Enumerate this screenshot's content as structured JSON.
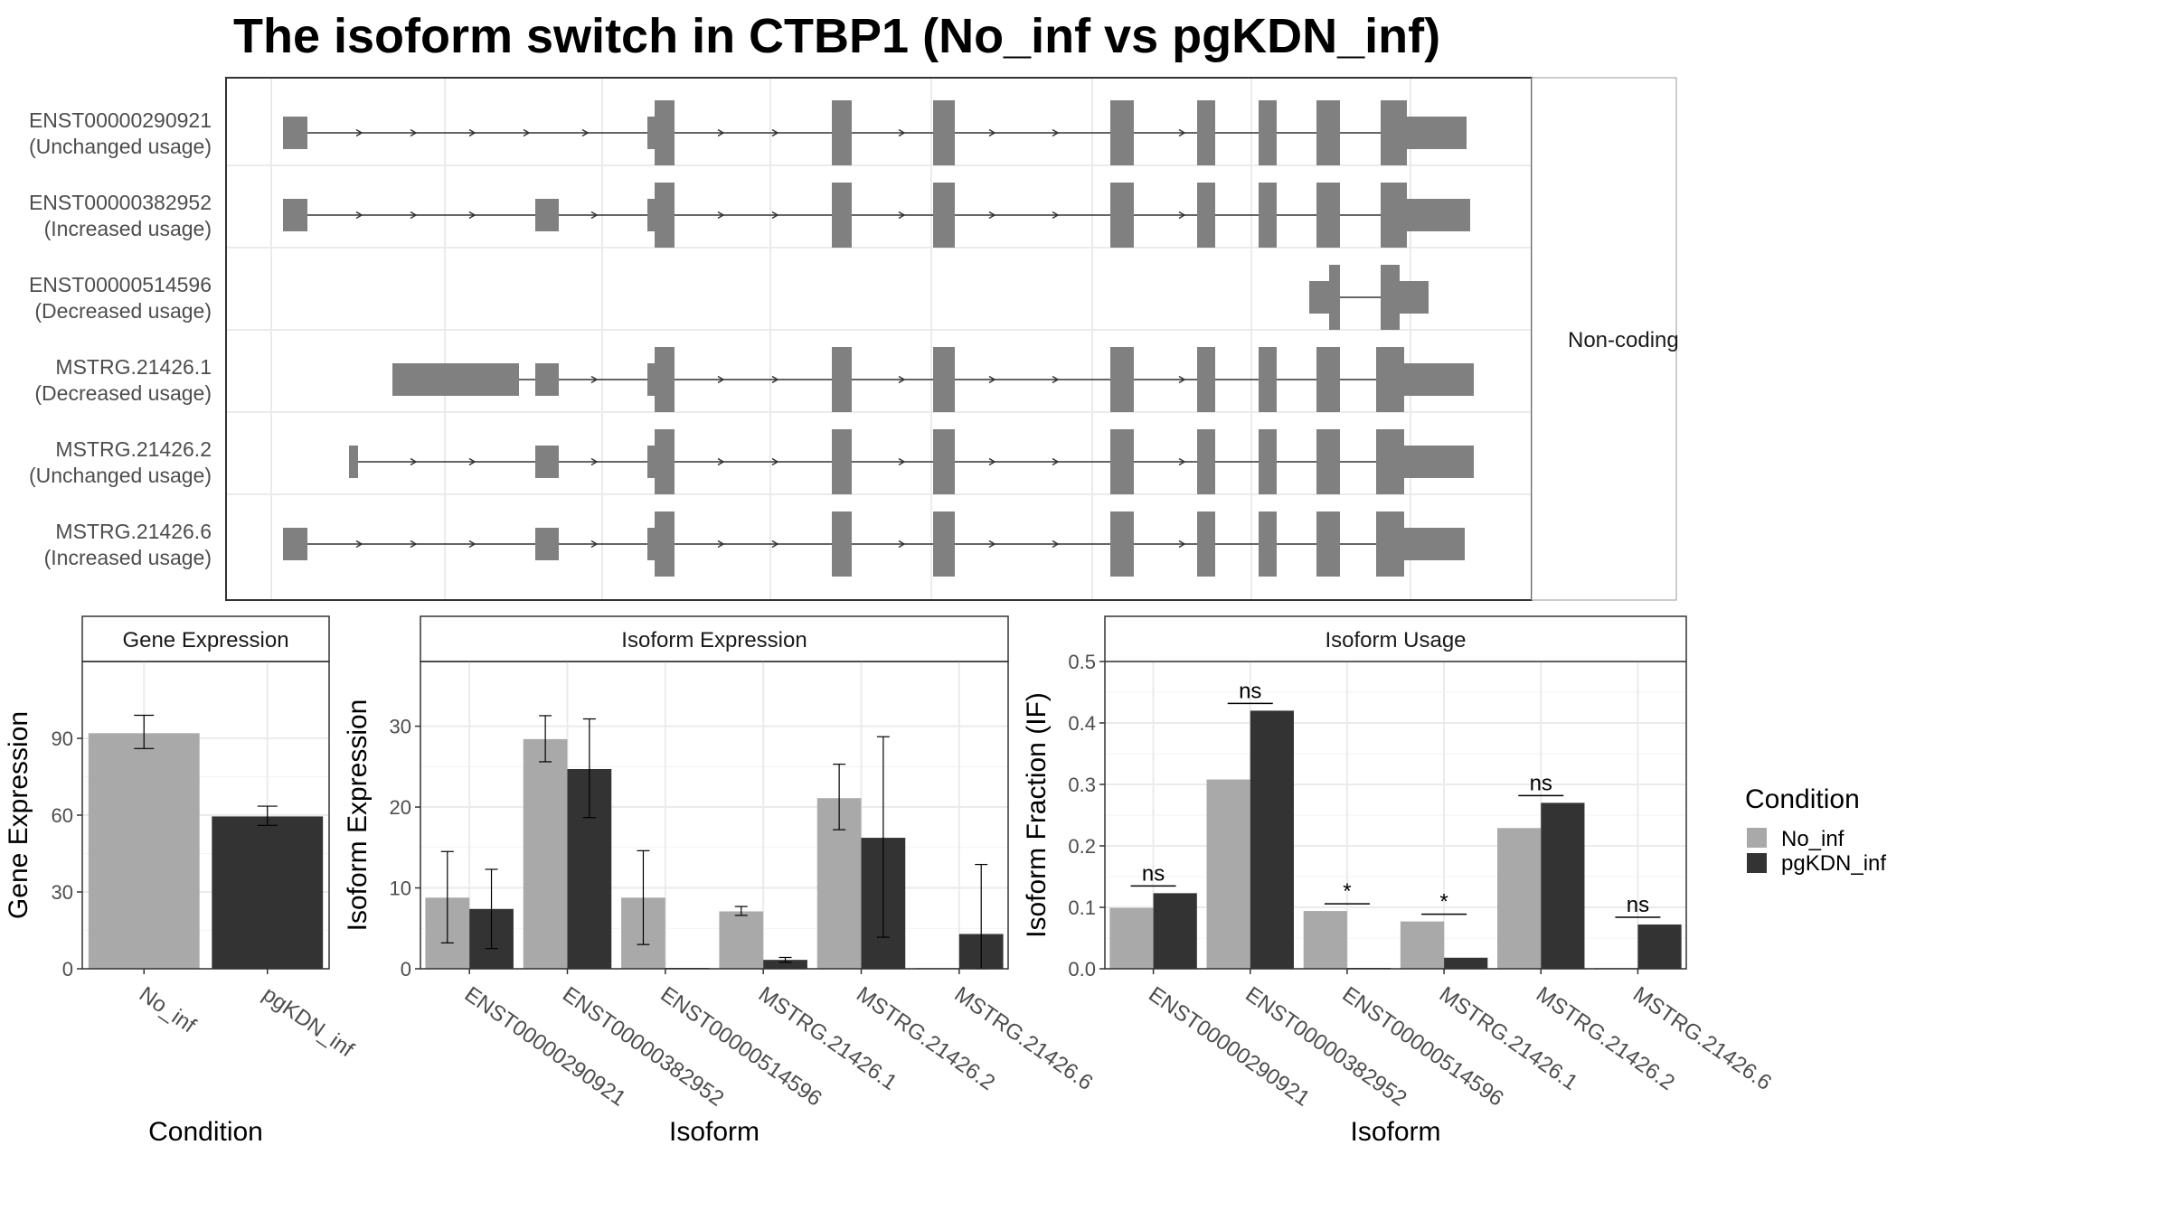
{
  "title": "The isoform switch in CTBP1 (No_inf vs pgKDN_inf)",
  "colors": {
    "no_inf": "#a9a9a9",
    "pgkdn_inf": "#333333",
    "exon": "#808080",
    "grid": "#ebebeb",
    "panel_border": "#333333",
    "strip_border": "#999999"
  },
  "legend": {
    "title": "Condition",
    "items": [
      {
        "label": "No_inf",
        "color": "#a9a9a9"
      },
      {
        "label": "pgKDN_inf",
        "color": "#333333"
      }
    ]
  },
  "structure": {
    "strip_label": "Non-coding",
    "transcripts": [
      {
        "id": "ENST00000290921",
        "usage": "(Unchanged usage)"
      },
      {
        "id": "ENST00000382952",
        "usage": "(Increased usage)"
      },
      {
        "id": "ENST00000514596",
        "usage": "(Decreased usage)"
      },
      {
        "id": "MSTRG.21426.1",
        "usage": "(Decreased usage)"
      },
      {
        "id": "MSTRG.21426.2",
        "usage": "(Unchanged usage)"
      },
      {
        "id": "MSTRG.21426.6",
        "usage": "(Increased usage)"
      }
    ]
  },
  "chart_data": [
    {
      "panel": "Gene Expression",
      "type": "bar",
      "xlabel": "Condition",
      "ylabel": "Gene Expression",
      "ylim": [
        0,
        120
      ],
      "yticks": [
        0,
        30,
        60,
        90
      ],
      "categories": [
        "No_inf",
        "pgKDN_inf"
      ],
      "values": [
        92,
        59.5
      ],
      "error_low": [
        86,
        56
      ],
      "error_high": [
        99,
        63.5
      ],
      "grid": true
    },
    {
      "panel": "Isoform Expression",
      "type": "bar",
      "xlabel": "Isoform",
      "ylabel": "Isoform Expression",
      "ylim": [
        0,
        38
      ],
      "yticks": [
        0,
        10,
        20,
        30
      ],
      "categories": [
        "ENST00000290921",
        "ENST00000382952",
        "ENST00000514596",
        "MSTRG.21426.1",
        "MSTRG.21426.2",
        "MSTRG.21426.6"
      ],
      "series": [
        {
          "name": "No_inf",
          "values": [
            8.8,
            28.4,
            8.8,
            7.1,
            21.1,
            0
          ],
          "error_low": [
            3.2,
            25.6,
            3.0,
            6.6,
            17.2,
            0
          ],
          "error_high": [
            14.5,
            31.3,
            14.6,
            7.7,
            25.3,
            0
          ]
        },
        {
          "name": "pgKDN_inf",
          "values": [
            7.4,
            24.7,
            0,
            1.1,
            16.2,
            4.3
          ],
          "error_low": [
            2.5,
            18.7,
            0,
            0.8,
            3.9,
            0
          ],
          "error_high": [
            12.3,
            30.9,
            0,
            1.4,
            28.7,
            12.9
          ]
        }
      ],
      "grid": true
    },
    {
      "panel": "Isoform Usage",
      "type": "bar",
      "xlabel": "Isoform",
      "ylabel": "Isoform Fraction (IF)",
      "ylim": [
        0,
        0.5
      ],
      "yticks": [
        "0.0",
        "0.1",
        "0.2",
        "0.3",
        "0.4",
        "0.5"
      ],
      "categories": [
        "ENST00000290921",
        "ENST00000382952",
        "ENST00000514596",
        "MSTRG.21426.1",
        "MSTRG.21426.2",
        "MSTRG.21426.6"
      ],
      "series": [
        {
          "name": "No_inf",
          "values": [
            0.099,
            0.308,
            0.094,
            0.077,
            0.229,
            0
          ]
        },
        {
          "name": "pgKDN_inf",
          "values": [
            0.123,
            0.42,
            0,
            0.018,
            0.27,
            0.072
          ]
        }
      ],
      "significance": [
        "ns",
        "ns",
        "*",
        "*",
        "ns",
        "ns"
      ],
      "grid": true
    }
  ]
}
